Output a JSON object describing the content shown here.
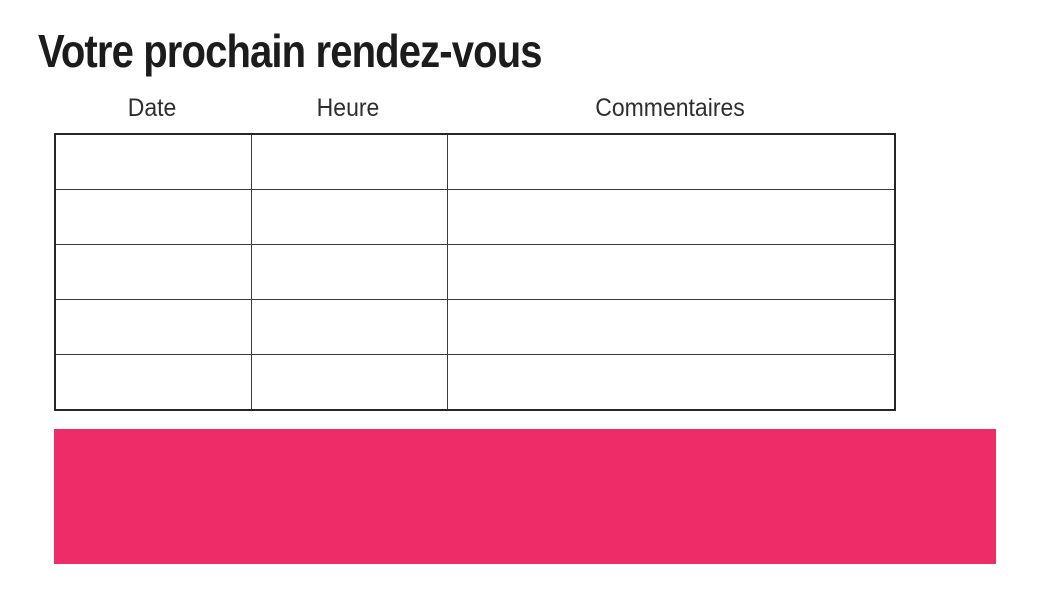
{
  "page": {
    "title": "Votre prochain rendez-vous"
  },
  "table": {
    "headers": [
      {
        "label": "Date"
      },
      {
        "label": "Heure"
      },
      {
        "label": "Commentaires"
      }
    ],
    "rows": [
      {
        "date": "",
        "heure": "",
        "commentaires": ""
      },
      {
        "date": "",
        "heure": "",
        "commentaires": ""
      },
      {
        "date": "",
        "heure": "",
        "commentaires": ""
      },
      {
        "date": "",
        "heure": "",
        "commentaires": ""
      },
      {
        "date": "",
        "heure": "",
        "commentaires": ""
      }
    ]
  },
  "colors": {
    "accent_pink": "#EE2D68",
    "title_text": "#1c1c1c",
    "header_text": "#2e2e2e",
    "table_border": "#3b3b3b"
  }
}
